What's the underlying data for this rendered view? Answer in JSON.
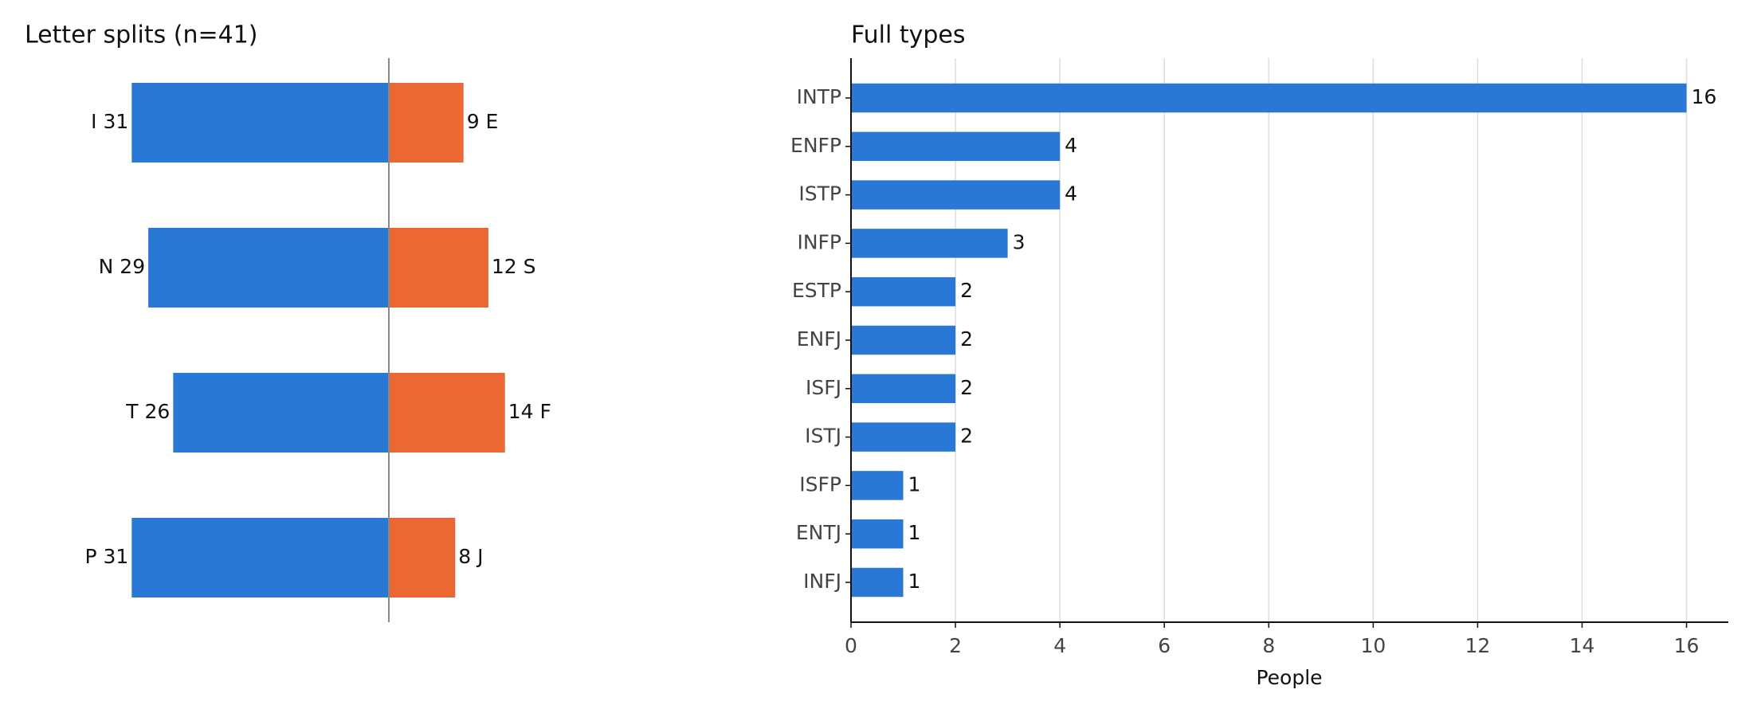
{
  "chart_data": [
    {
      "type": "diverging_bar",
      "title": "Letter splits (n=41)",
      "series": [
        {
          "color": "#2a78d6",
          "values": [
            31,
            29,
            26,
            31
          ],
          "value_labels": [
            "I 31",
            "N 29",
            "T 26",
            "P 31"
          ]
        },
        {
          "color": "#eb6834",
          "values": [
            9,
            12,
            14,
            8
          ],
          "value_labels": [
            "9 E",
            "12 S",
            "14 F",
            "8 J"
          ]
        }
      ]
    },
    {
      "type": "hbar",
      "title": "Full types",
      "x_label": "People",
      "categories": [
        "INTP",
        "ENFP",
        "ISTP",
        "INFP",
        "ESTP",
        "ENFJ",
        "ISFJ",
        "ISTJ",
        "ISFP",
        "ENTJ",
        "INFJ"
      ],
      "values": [
        16,
        4,
        4,
        3,
        2,
        2,
        2,
        2,
        1,
        1,
        1
      ],
      "color": "#2a78d6",
      "xlim": [
        0,
        16.8
      ],
      "xticks": [
        0,
        2,
        4,
        6,
        8,
        10,
        12,
        14,
        16
      ],
      "grid": true
    }
  ]
}
